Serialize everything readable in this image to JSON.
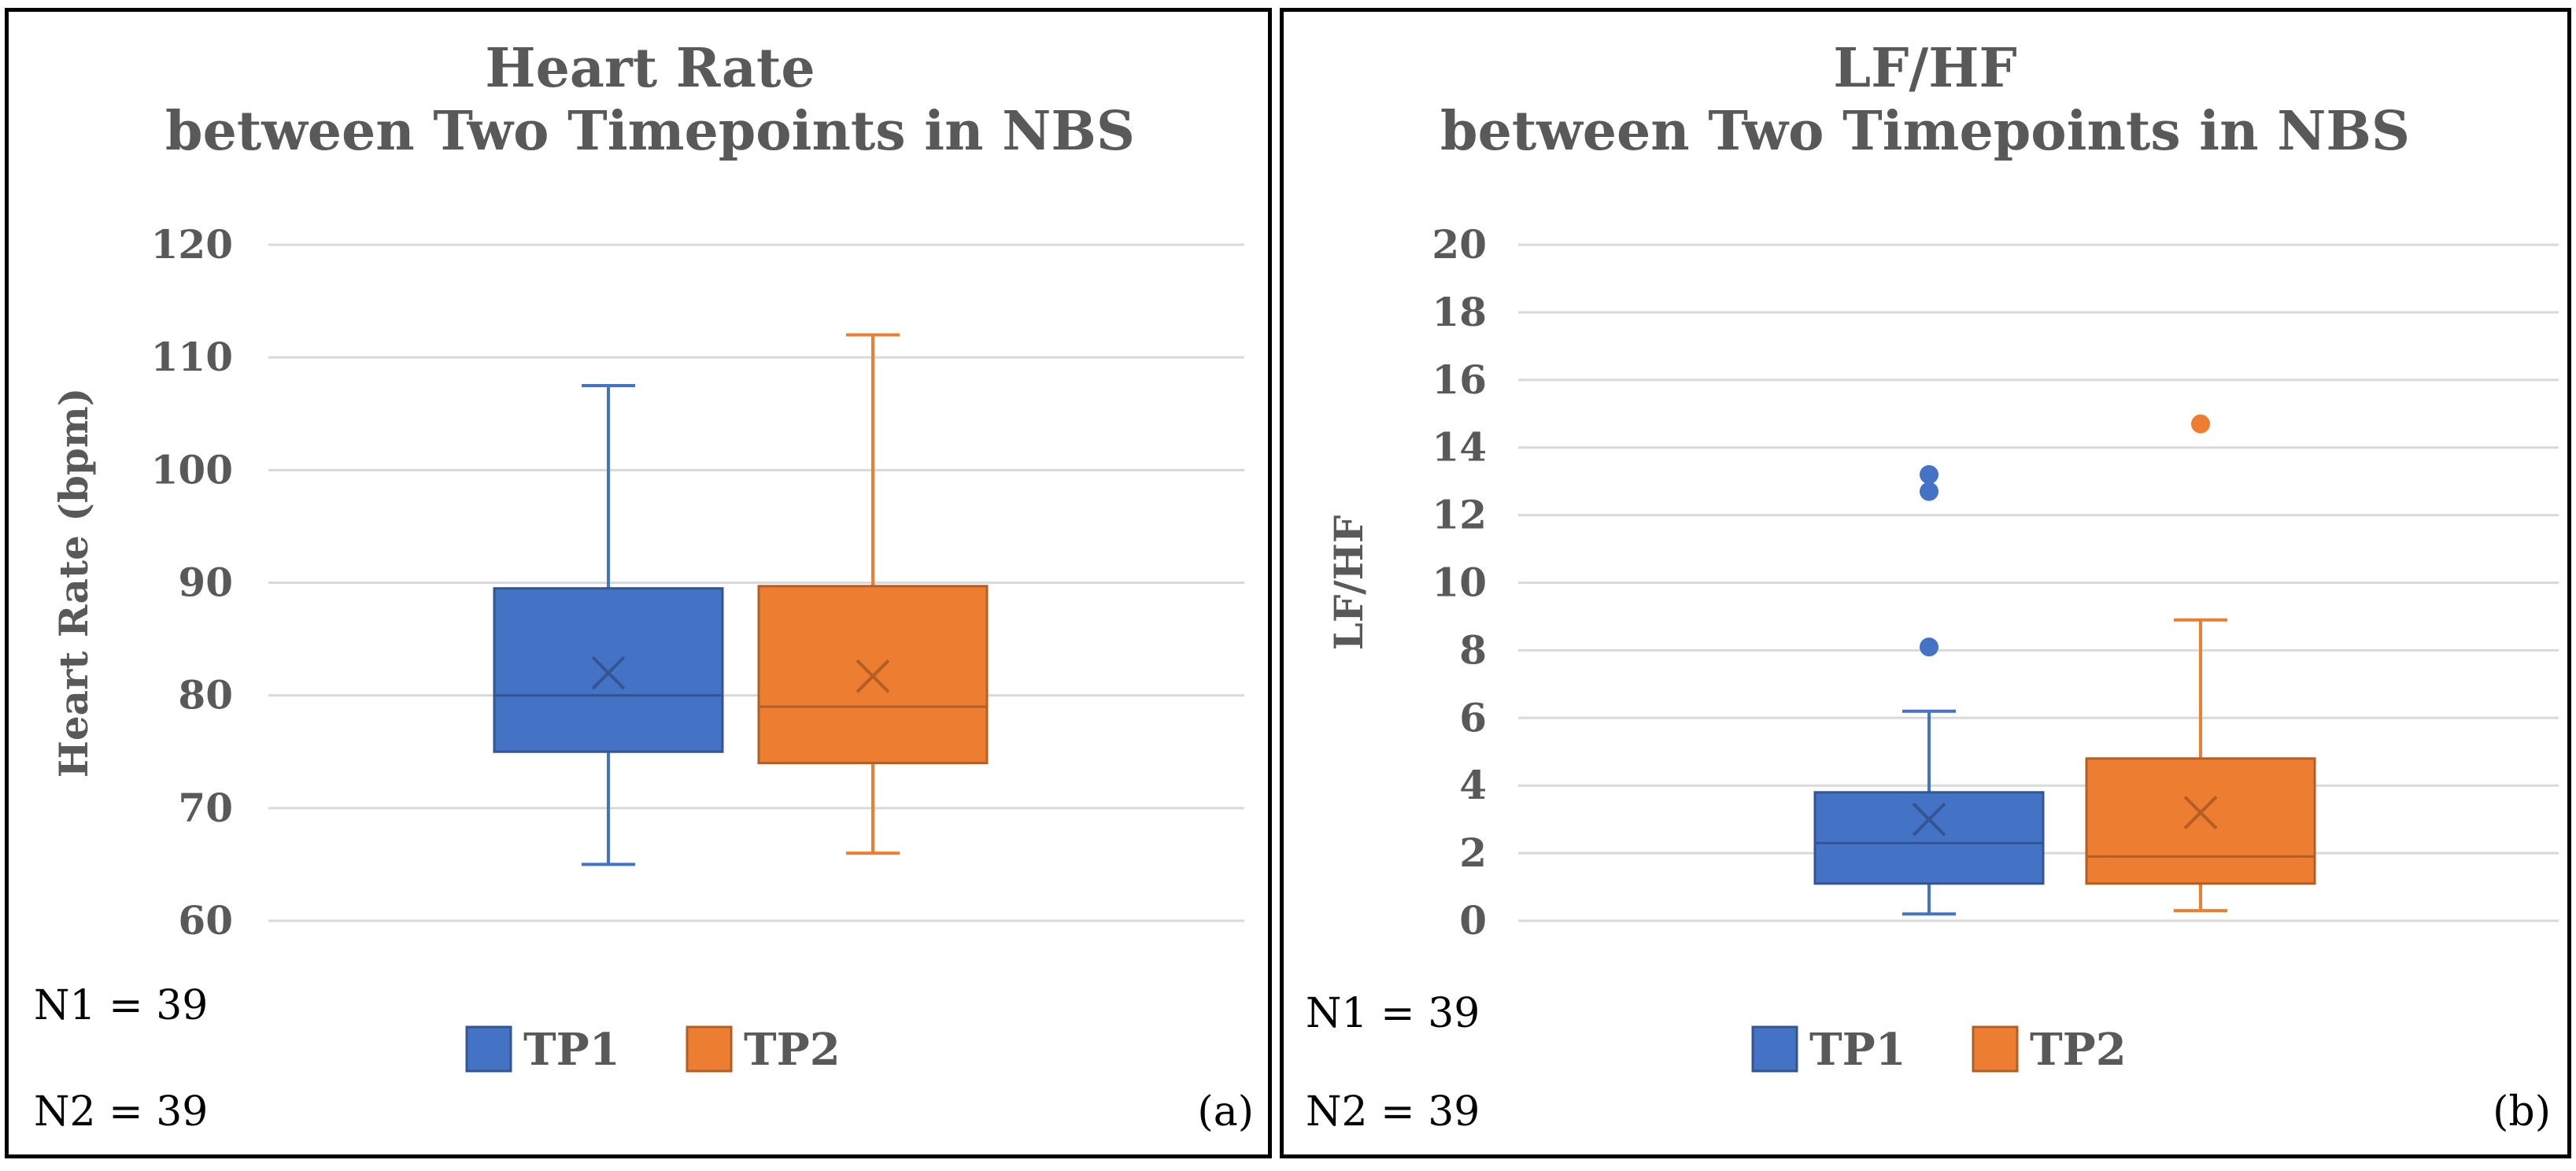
{
  "chart_data": [
    {
      "type": "boxplot",
      "title": [
        "Heart Rate",
        "between Two Timepoints in NBS"
      ],
      "xlabel": "",
      "ylabel": "Heart Rate (bpm)",
      "ylim": [
        60,
        120
      ],
      "yticks": [
        60,
        70,
        80,
        90,
        100,
        110,
        120
      ],
      "grid": true,
      "legend_position": "bottom",
      "series": [
        {
          "name": "TP1",
          "color": "#4472C4",
          "min": 65,
          "q1": 75,
          "median": 80,
          "q3": 89.5,
          "max": 107.5,
          "mean": 82,
          "outliers": []
        },
        {
          "name": "TP2",
          "color": "#ED7D31",
          "min": 66,
          "q1": 74,
          "median": 79,
          "q3": 89.7,
          "max": 112,
          "mean": 81.7,
          "outliers": []
        }
      ],
      "notes": [
        "N1 = 39",
        "N2 = 39"
      ],
      "panel_label": "(a)"
    },
    {
      "type": "boxplot",
      "title": [
        "LF/HF",
        "between Two Timepoints in NBS"
      ],
      "xlabel": "",
      "ylabel": "LF/HF",
      "ylim": [
        0,
        20
      ],
      "yticks": [
        0,
        2,
        4,
        6,
        8,
        10,
        12,
        14,
        16,
        18,
        20
      ],
      "grid": true,
      "legend_position": "bottom",
      "series": [
        {
          "name": "TP1",
          "color": "#4472C4",
          "min": 0.2,
          "q1": 1.1,
          "median": 2.3,
          "q3": 3.8,
          "max": 6.2,
          "mean": 3.0,
          "outliers": [
            8.1,
            12.7,
            13.2
          ]
        },
        {
          "name": "TP2",
          "color": "#ED7D31",
          "min": 0.3,
          "q1": 1.1,
          "median": 1.9,
          "q3": 4.8,
          "max": 8.9,
          "mean": 3.2,
          "outliers": [
            14.7
          ]
        }
      ],
      "notes": [
        "N1 = 39",
        "N2 = 39"
      ],
      "panel_label": "(b)"
    }
  ]
}
